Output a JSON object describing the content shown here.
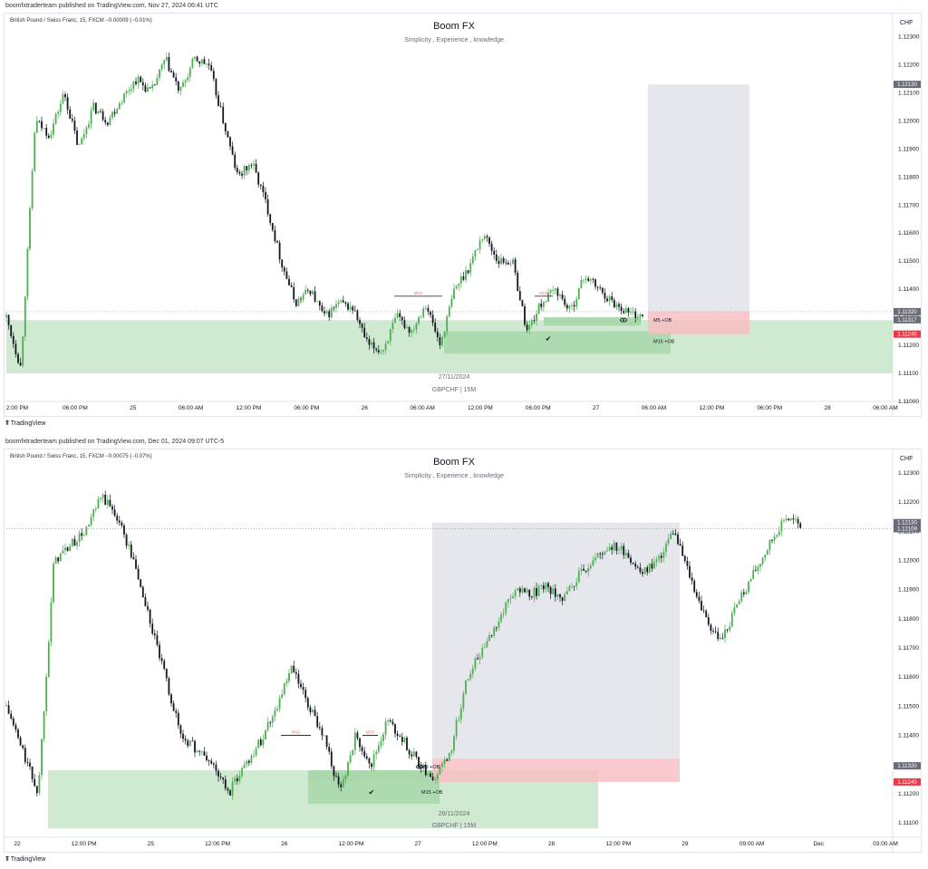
{
  "panels": [
    {
      "publisher": "boomfxtraderteam published on TradingView.com, Nov 27, 2024 06:41 UTC",
      "symbol": "British Pound / Swiss Franc, 15, FXCM  −0.00009 (−0.01%)",
      "title": "Boom FX",
      "subtitle": "Simplicity , Experience , knowledge",
      "date_watermark": "27/11/2024",
      "ticker_watermark": "GBPCHF | 15M",
      "logo": "TradingView"
    },
    {
      "publisher": "boomfxtraderteam published on TradingView.com, Dec 01, 2024 09:07 UTC-5",
      "symbol": "British Pound / Swiss Franc, 15, FXCM  −0.00075 (−0.07%)",
      "title": "Boom FX",
      "subtitle": "Simplicity , Experience , knowledge",
      "date_watermark": "29/11/2024",
      "ticker_watermark": "GBPCHF | 15M",
      "logo": "TradingView"
    }
  ],
  "colors": {
    "up": "#4caf50",
    "down": "#131722",
    "demand_zone": "#c8e6c9",
    "ob_zone": "#a5d6a7",
    "target_zone": "#d1d4dc",
    "stop_zone": "#f8bbc0",
    "price_tag": "#6a6d78",
    "stop_tag": "#f23645",
    "mss": "#e57373"
  },
  "chart_data": [
    {
      "type": "candlestick",
      "currency": "CHF",
      "ylim": [
        1.11,
        1.1235
      ],
      "yticks": [
        "1.12300",
        "1.12200",
        "1.12100",
        "1.12000",
        "1.11900",
        "1.11800",
        "1.11700",
        "1.11600",
        "1.11500",
        "1.11400",
        "1.11300",
        "1.11200",
        "1.11100",
        "1.11000"
      ],
      "xticks": [
        "2:00 PM",
        "06:00 PM",
        "25",
        "06:00 AM",
        "12:00 PM",
        "06:00 PM",
        "26",
        "06:00 AM",
        "12:00 PM",
        "06:00 PM",
        "27",
        "06:00 AM",
        "12:00 PM",
        "06:00 PM",
        "28",
        "06:00 AM"
      ],
      "price_path": [
        1.113,
        1.1112,
        1.12,
        1.1195,
        1.121,
        1.119,
        1.1205,
        1.12,
        1.1208,
        1.1215,
        1.121,
        1.1222,
        1.121,
        1.1222,
        1.122,
        1.12,
        1.118,
        1.1185,
        1.117,
        1.115,
        1.1135,
        1.114,
        1.113,
        1.1135,
        1.1133,
        1.112,
        1.1118,
        1.113,
        1.1125,
        1.1135,
        1.112,
        1.114,
        1.1148,
        1.116,
        1.115,
        1.115,
        1.1125,
        1.1135,
        1.114,
        1.1132,
        1.1145,
        1.114,
        1.1135,
        1.1132,
        1.113
      ],
      "levels": [
        {
          "label": "1.12130",
          "value": 1.1213,
          "kind": "target"
        },
        {
          "label": "1.11320",
          "value": 1.1132,
          "kind": "price"
        },
        {
          "label": "1.11317",
          "value": 1.11317,
          "kind": "price"
        },
        {
          "label": "1.11240",
          "value": 1.1124,
          "kind": "stop"
        }
      ],
      "annotations": {
        "mss": [
          "MSS",
          "MSS"
        ],
        "ob_labels": [
          "M5 +OB",
          "M15 +OB"
        ]
      }
    },
    {
      "type": "candlestick",
      "currency": "CHF",
      "ylim": [
        1.1105,
        1.1235
      ],
      "yticks": [
        "1.12300",
        "1.12200",
        "1.12100",
        "1.12000",
        "1.11900",
        "1.11800",
        "1.11700",
        "1.11600",
        "1.11500",
        "1.11400",
        "1.11300",
        "1.11200",
        "1.11100"
      ],
      "xticks": [
        "22",
        "12:00 PM",
        "25",
        "12:00 PM",
        "26",
        "12:00 PM",
        "27",
        "12:00 PM",
        "28",
        "12:00 PM",
        "29",
        "09:00 AM",
        "Dec",
        "03:00 AM"
      ],
      "price_path": [
        1.115,
        1.1135,
        1.112,
        1.12,
        1.1205,
        1.121,
        1.1222,
        1.1215,
        1.12,
        1.118,
        1.116,
        1.114,
        1.1135,
        1.113,
        1.112,
        1.113,
        1.1138,
        1.115,
        1.1163,
        1.115,
        1.114,
        1.112,
        1.114,
        1.113,
        1.1145,
        1.1138,
        1.113,
        1.1125,
        1.1135,
        1.116,
        1.117,
        1.118,
        1.119,
        1.1188,
        1.1192,
        1.1185,
        1.1195,
        1.12,
        1.1205,
        1.1203,
        1.1195,
        1.12,
        1.121,
        1.1195,
        1.118,
        1.1172,
        1.1185,
        1.1195,
        1.1205,
        1.1215,
        1.1212
      ],
      "levels": [
        {
          "label": "1.12130",
          "value": 1.1213,
          "kind": "target"
        },
        {
          "label": "1.12109",
          "value": 1.12109,
          "kind": "price"
        },
        {
          "label": "1.11320",
          "value": 1.1132,
          "kind": "price"
        },
        {
          "label": "1.11240",
          "value": 1.1124,
          "kind": "stop"
        }
      ],
      "annotations": {
        "mss": [
          "MSS",
          "MSS"
        ],
        "ob_labels": [
          "M5 +OB",
          "M15 +OB"
        ]
      }
    }
  ]
}
